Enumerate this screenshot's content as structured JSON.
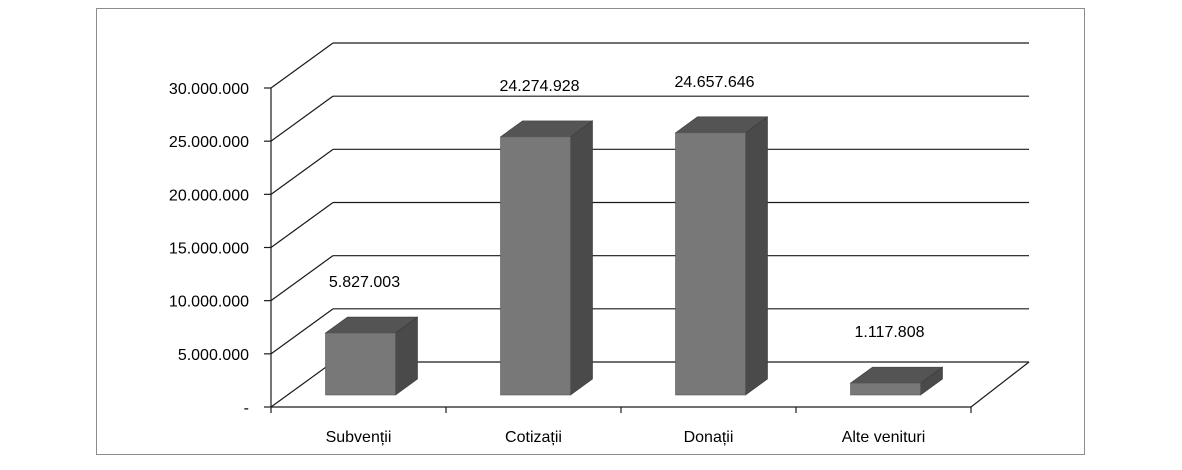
{
  "chart_data": {
    "type": "bar",
    "categories": [
      "Subvenții",
      "Cotizații",
      "Donații",
      "Alte venituri"
    ],
    "values": [
      5827003,
      24274928,
      24657646,
      1117808
    ],
    "data_labels": [
      "5.827.003",
      "24.274.928",
      "24.657.646",
      "1.117.808"
    ],
    "y_ticks": [
      0,
      5000000,
      10000000,
      15000000,
      20000000,
      25000000,
      30000000
    ],
    "y_tick_labels": [
      "-",
      "5.000.000",
      "10.000.000",
      "15.000.000",
      "20.000.000",
      "25.000.000",
      "30.000.000"
    ],
    "ylim": [
      0,
      30000000
    ],
    "grid": true,
    "legend": false,
    "colors": {
      "bar_front": "#787878",
      "bar_side": "#4a4a4a",
      "bar_top": "#545454",
      "gridline": "#1a1a1a",
      "frame": "#8c8c8c"
    }
  }
}
